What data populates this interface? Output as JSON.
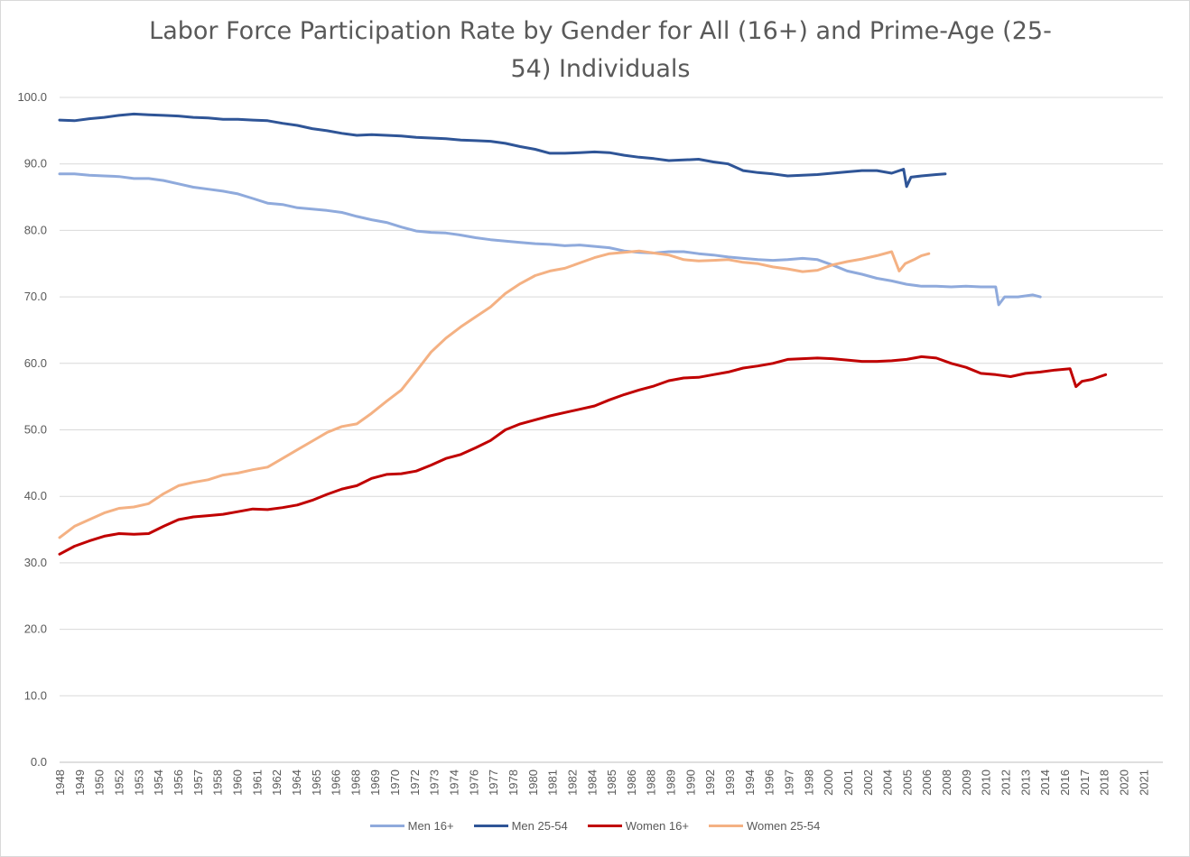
{
  "chart_data": {
    "type": "line",
    "title": "Labor Force Participation Rate by Gender for All (16+) and Prime-Age (25-54) Individuals",
    "title_lines": [
      "Labor Force Participation Rate by Gender for All (16+) and Prime-Age (25-",
      "54) Individuals"
    ],
    "xlabel": "",
    "ylabel": "",
    "ylim": [
      0,
      100
    ],
    "yticks": [
      "0.0",
      "10.0",
      "20.0",
      "30.0",
      "40.0",
      "50.0",
      "60.0",
      "70.0",
      "80.0",
      "90.0",
      "100.0"
    ],
    "xlim": [
      1948,
      2022.25
    ],
    "xtick_labels": [
      "1948",
      "1949",
      "1950",
      "1952",
      "1953",
      "1954",
      "1956",
      "1957",
      "1958",
      "1960",
      "1961",
      "1962",
      "1964",
      "1965",
      "1966",
      "1968",
      "1969",
      "1970",
      "1972",
      "1973",
      "1974",
      "1976",
      "1977",
      "1978",
      "1980",
      "1981",
      "1982",
      "1984",
      "1985",
      "1986",
      "1988",
      "1989",
      "1990",
      "1992",
      "1993",
      "1994",
      "1996",
      "1997",
      "1998",
      "2000",
      "2001",
      "2002",
      "2004",
      "2005",
      "2006",
      "2008",
      "2009",
      "2010",
      "2012",
      "2013",
      "2014",
      "2016",
      "2017",
      "2018",
      "2020",
      "2021"
    ],
    "grid": "horizontal",
    "legend_position": "bottom",
    "series": [
      {
        "name": "Men 16+",
        "color": "#8faadc",
        "points": [
          [
            1948,
            88.5
          ],
          [
            1949,
            88.5
          ],
          [
            1950,
            88.3
          ],
          [
            1951,
            88.2
          ],
          [
            1952,
            88.1
          ],
          [
            1953,
            87.8
          ],
          [
            1954,
            87.8
          ],
          [
            1955,
            87.5
          ],
          [
            1956,
            87.0
          ],
          [
            1957,
            86.5
          ],
          [
            1958,
            86.2
          ],
          [
            1959,
            85.9
          ],
          [
            1960,
            85.5
          ],
          [
            1961,
            84.8
          ],
          [
            1962,
            84.1
          ],
          [
            1963,
            83.9
          ],
          [
            1964,
            83.4
          ],
          [
            1965,
            83.2
          ],
          [
            1966,
            83.0
          ],
          [
            1967,
            82.7
          ],
          [
            1968,
            82.1
          ],
          [
            1969,
            81.6
          ],
          [
            1970,
            81.2
          ],
          [
            1971,
            80.5
          ],
          [
            1972,
            79.9
          ],
          [
            1973,
            79.7
          ],
          [
            1974,
            79.6
          ],
          [
            1975,
            79.3
          ],
          [
            1976,
            78.9
          ],
          [
            1977,
            78.6
          ],
          [
            1978,
            78.4
          ],
          [
            1979,
            78.2
          ],
          [
            1980,
            78.0
          ],
          [
            1981,
            77.9
          ],
          [
            1982,
            77.7
          ],
          [
            1983,
            77.8
          ],
          [
            1984,
            77.6
          ],
          [
            1985,
            77.4
          ],
          [
            1986,
            76.9
          ],
          [
            1987,
            76.7
          ],
          [
            1988,
            76.6
          ],
          [
            1989,
            76.8
          ],
          [
            1990,
            76.8
          ],
          [
            1991,
            76.5
          ],
          [
            1992,
            76.3
          ],
          [
            1993,
            76.0
          ],
          [
            1994,
            75.8
          ],
          [
            1995,
            75.6
          ],
          [
            1996,
            75.5
          ],
          [
            1997,
            75.6
          ],
          [
            1998,
            75.8
          ],
          [
            1999,
            75.6
          ],
          [
            2000,
            74.8
          ],
          [
            2001,
            73.9
          ],
          [
            2002,
            73.4
          ],
          [
            2003,
            72.8
          ],
          [
            2004,
            72.4
          ],
          [
            2005,
            71.9
          ],
          [
            2006,
            71.6
          ],
          [
            2007,
            71.6
          ],
          [
            2008,
            71.5
          ],
          [
            2009,
            71.6
          ],
          [
            2010,
            71.5
          ],
          [
            2011,
            71.5
          ],
          [
            2011.2,
            68.8
          ],
          [
            2011.6,
            70.0
          ],
          [
            2012.5,
            70.0
          ],
          [
            2013.5,
            70.3
          ],
          [
            2014,
            70.0
          ]
        ]
      },
      {
        "name": "Men 25-54",
        "color": "#2f5597",
        "points": [
          [
            1948,
            96.6
          ],
          [
            1949,
            96.5
          ],
          [
            1950,
            96.8
          ],
          [
            1951,
            97.0
          ],
          [
            1952,
            97.3
          ],
          [
            1953,
            97.5
          ],
          [
            1954,
            97.4
          ],
          [
            1955,
            97.3
          ],
          [
            1956,
            97.2
          ],
          [
            1957,
            97.0
          ],
          [
            1958,
            96.9
          ],
          [
            1959,
            96.7
          ],
          [
            1960,
            96.7
          ],
          [
            1961,
            96.6
          ],
          [
            1962,
            96.5
          ],
          [
            1963,
            96.1
          ],
          [
            1964,
            95.8
          ],
          [
            1965,
            95.3
          ],
          [
            1966,
            95.0
          ],
          [
            1967,
            94.6
          ],
          [
            1968,
            94.3
          ],
          [
            1969,
            94.4
          ],
          [
            1970,
            94.3
          ],
          [
            1971,
            94.2
          ],
          [
            1972,
            94.0
          ],
          [
            1973,
            93.9
          ],
          [
            1974,
            93.8
          ],
          [
            1975,
            93.6
          ],
          [
            1976,
            93.5
          ],
          [
            1977,
            93.4
          ],
          [
            1978,
            93.1
          ],
          [
            1979,
            92.6
          ],
          [
            1980,
            92.2
          ],
          [
            1981,
            91.6
          ],
          [
            1982,
            91.6
          ],
          [
            1983,
            91.7
          ],
          [
            1984,
            91.8
          ],
          [
            1985,
            91.7
          ],
          [
            1986,
            91.3
          ],
          [
            1987,
            91.0
          ],
          [
            1988,
            90.8
          ],
          [
            1989,
            90.5
          ],
          [
            1990,
            90.6
          ],
          [
            1991,
            90.7
          ],
          [
            1992,
            90.3
          ],
          [
            1993,
            90.0
          ],
          [
            1994,
            89.0
          ],
          [
            1995,
            88.7
          ],
          [
            1996,
            88.5
          ],
          [
            1997,
            88.2
          ],
          [
            1998,
            88.3
          ],
          [
            1999,
            88.4
          ],
          [
            2000,
            88.6
          ],
          [
            2001,
            88.8
          ],
          [
            2002,
            89.0
          ],
          [
            2003,
            89.0
          ],
          [
            2004,
            88.6
          ],
          [
            2004.8,
            89.2
          ],
          [
            2005,
            86.6
          ],
          [
            2005.3,
            88.0
          ],
          [
            2006,
            88.2
          ],
          [
            2007,
            88.4
          ],
          [
            2007.6,
            88.5
          ]
        ]
      },
      {
        "name": "Women 16+",
        "color": "#c00000",
        "points": [
          [
            1948,
            31.3
          ],
          [
            1949,
            32.5
          ],
          [
            1950,
            33.3
          ],
          [
            1951,
            34.0
          ],
          [
            1952,
            34.4
          ],
          [
            1953,
            34.3
          ],
          [
            1954,
            34.4
          ],
          [
            1955,
            35.5
          ],
          [
            1956,
            36.5
          ],
          [
            1957,
            36.9
          ],
          [
            1958,
            37.1
          ],
          [
            1959,
            37.3
          ],
          [
            1960,
            37.7
          ],
          [
            1961,
            38.1
          ],
          [
            1962,
            38.0
          ],
          [
            1963,
            38.3
          ],
          [
            1964,
            38.7
          ],
          [
            1965,
            39.4
          ],
          [
            1966,
            40.3
          ],
          [
            1967,
            41.1
          ],
          [
            1968,
            41.6
          ],
          [
            1969,
            42.7
          ],
          [
            1970,
            43.3
          ],
          [
            1971,
            43.4
          ],
          [
            1972,
            43.8
          ],
          [
            1973,
            44.7
          ],
          [
            1974,
            45.7
          ],
          [
            1975,
            46.3
          ],
          [
            1976,
            47.3
          ],
          [
            1977,
            48.4
          ],
          [
            1978,
            50.0
          ],
          [
            1979,
            50.9
          ],
          [
            1980,
            51.5
          ],
          [
            1981,
            52.1
          ],
          [
            1982,
            52.6
          ],
          [
            1983,
            53.1
          ],
          [
            1984,
            53.6
          ],
          [
            1985,
            54.5
          ],
          [
            1986,
            55.3
          ],
          [
            1987,
            56.0
          ],
          [
            1988,
            56.6
          ],
          [
            1989,
            57.4
          ],
          [
            1990,
            57.8
          ],
          [
            1991,
            57.9
          ],
          [
            1992,
            58.3
          ],
          [
            1993,
            58.7
          ],
          [
            1994,
            59.3
          ],
          [
            1995,
            59.6
          ],
          [
            1996,
            60.0
          ],
          [
            1997,
            60.6
          ],
          [
            1998,
            60.7
          ],
          [
            1999,
            60.8
          ],
          [
            2000,
            60.7
          ],
          [
            2001,
            60.5
          ],
          [
            2002,
            60.3
          ],
          [
            2003,
            60.3
          ],
          [
            2004,
            60.4
          ],
          [
            2005,
            60.6
          ],
          [
            2006,
            61.0
          ],
          [
            2007,
            60.8
          ],
          [
            2008,
            60.0
          ],
          [
            2009,
            59.4
          ],
          [
            2010,
            58.5
          ],
          [
            2011,
            58.3
          ],
          [
            2012,
            58.0
          ],
          [
            2013,
            58.5
          ],
          [
            2014,
            58.7
          ],
          [
            2015,
            59.0
          ],
          [
            2016,
            59.2
          ],
          [
            2016.4,
            56.5
          ],
          [
            2016.8,
            57.3
          ],
          [
            2017.5,
            57.6
          ],
          [
            2018,
            58.0
          ],
          [
            2018.4,
            58.3
          ]
        ]
      },
      {
        "name": "Women 25-54",
        "color": "#f4b183",
        "points": [
          [
            1948,
            33.8
          ],
          [
            1949,
            35.5
          ],
          [
            1950,
            36.5
          ],
          [
            1951,
            37.5
          ],
          [
            1952,
            38.2
          ],
          [
            1953,
            38.4
          ],
          [
            1954,
            38.9
          ],
          [
            1955,
            40.4
          ],
          [
            1956,
            41.6
          ],
          [
            1957,
            42.1
          ],
          [
            1958,
            42.5
          ],
          [
            1959,
            43.2
          ],
          [
            1960,
            43.5
          ],
          [
            1961,
            44.0
          ],
          [
            1962,
            44.4
          ],
          [
            1963,
            45.7
          ],
          [
            1964,
            47.0
          ],
          [
            1965,
            48.3
          ],
          [
            1966,
            49.6
          ],
          [
            1967,
            50.5
          ],
          [
            1968,
            50.9
          ],
          [
            1969,
            52.5
          ],
          [
            1970,
            54.3
          ],
          [
            1971,
            56.0
          ],
          [
            1972,
            58.8
          ],
          [
            1973,
            61.7
          ],
          [
            1974,
            63.8
          ],
          [
            1975,
            65.5
          ],
          [
            1976,
            67.0
          ],
          [
            1977,
            68.5
          ],
          [
            1978,
            70.5
          ],
          [
            1979,
            72.0
          ],
          [
            1980,
            73.2
          ],
          [
            1981,
            73.9
          ],
          [
            1982,
            74.3
          ],
          [
            1983,
            75.1
          ],
          [
            1984,
            75.9
          ],
          [
            1985,
            76.5
          ],
          [
            1986,
            76.7
          ],
          [
            1987,
            76.9
          ],
          [
            1988,
            76.6
          ],
          [
            1989,
            76.3
          ],
          [
            1990,
            75.6
          ],
          [
            1991,
            75.4
          ],
          [
            1992,
            75.5
          ],
          [
            1993,
            75.6
          ],
          [
            1994,
            75.2
          ],
          [
            1995,
            75.0
          ],
          [
            1996,
            74.5
          ],
          [
            1997,
            74.2
          ],
          [
            1998,
            73.8
          ],
          [
            1999,
            74.0
          ],
          [
            2000,
            74.8
          ],
          [
            2001,
            75.3
          ],
          [
            2002,
            75.7
          ],
          [
            2003,
            76.2
          ],
          [
            2004,
            76.8
          ],
          [
            2004.5,
            73.9
          ],
          [
            2004.9,
            75.0
          ],
          [
            2005.5,
            75.6
          ],
          [
            2006,
            76.2
          ],
          [
            2006.5,
            76.5
          ]
        ]
      }
    ]
  }
}
